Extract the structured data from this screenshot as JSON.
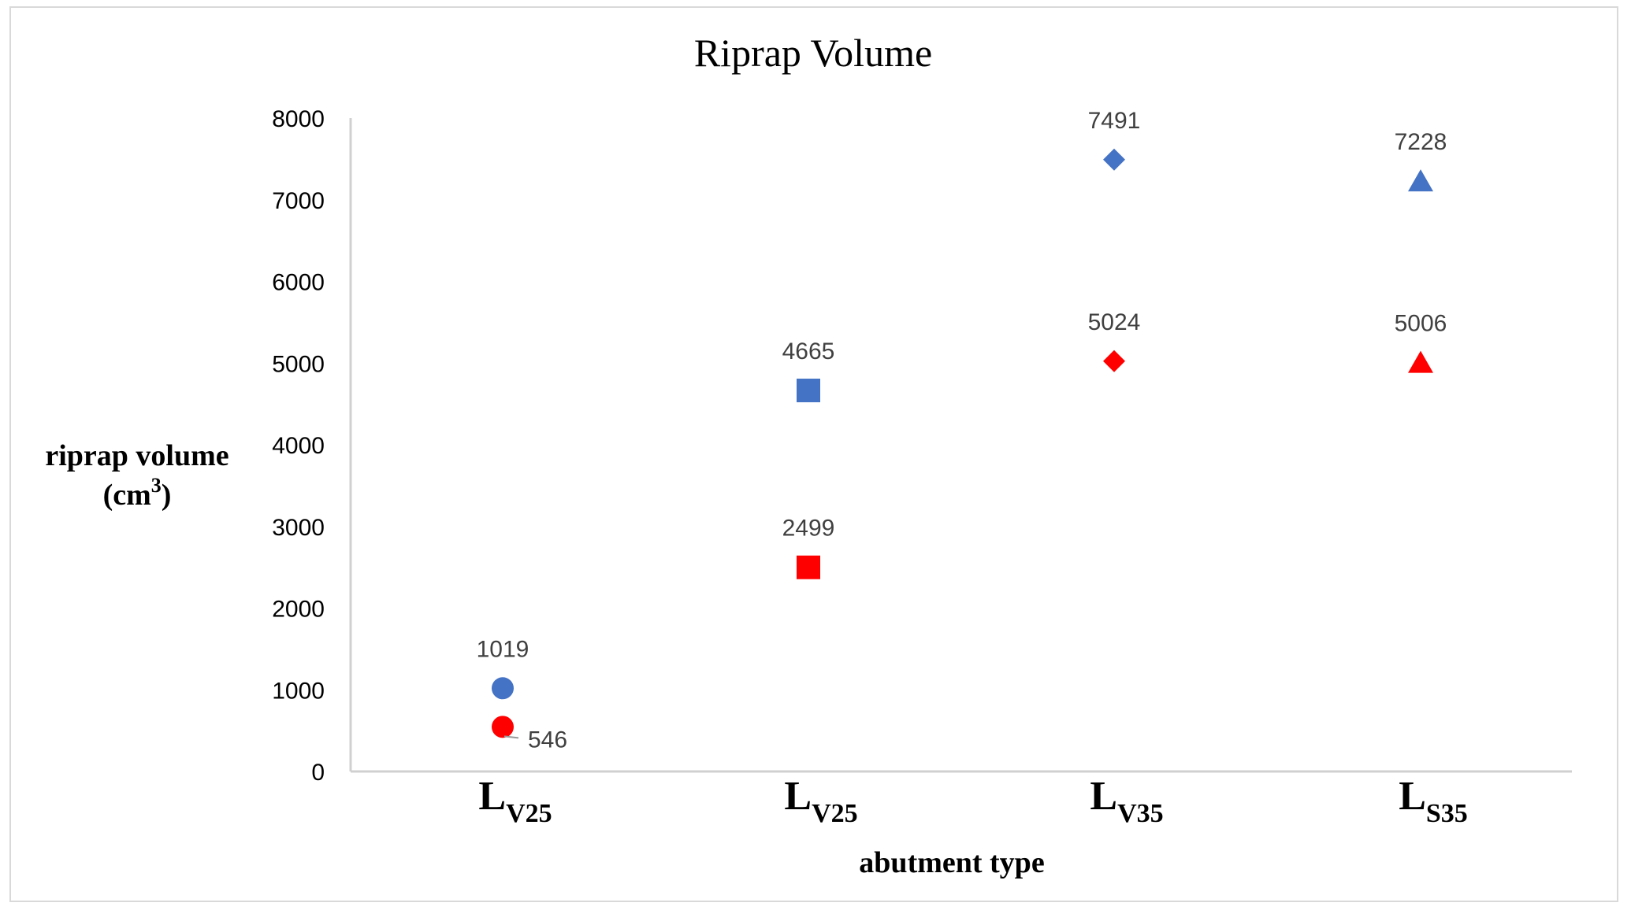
{
  "chart_data": {
    "type": "scatter",
    "title": "Riprap Volume",
    "xlabel": "abutment type",
    "ylabel_line1": "riprap volume",
    "ylabel_line2_base": "(cm",
    "ylabel_line2_sup": "3",
    "ylabel_line2_end": ")",
    "ylim": [
      0,
      8000
    ],
    "yticks": [
      "0",
      "1000",
      "2000",
      "3000",
      "4000",
      "5000",
      "6000",
      "7000",
      "8000"
    ],
    "categories": [
      {
        "main": "L",
        "sub": "V25"
      },
      {
        "main": "L",
        "sub": "V25"
      },
      {
        "main": "L",
        "sub": "V35"
      },
      {
        "main": "L",
        "sub": "S35"
      }
    ],
    "series": [
      {
        "color": "#4472c4",
        "points": [
          {
            "category_index": 0,
            "value": 1019,
            "label": "1019",
            "marker": "circle"
          },
          {
            "category_index": 1,
            "value": 4665,
            "label": "4665",
            "marker": "square"
          },
          {
            "category_index": 2,
            "value": 7491,
            "label": "7491",
            "marker": "diamond"
          },
          {
            "category_index": 3,
            "value": 7228,
            "label": "7228",
            "marker": "triangle"
          }
        ]
      },
      {
        "color": "#ff0000",
        "points": [
          {
            "category_index": 0,
            "value": 546,
            "label": "546",
            "marker": "circle"
          },
          {
            "category_index": 1,
            "value": 2499,
            "label": "2499",
            "marker": "square"
          },
          {
            "category_index": 2,
            "value": 5024,
            "label": "5024",
            "marker": "diamond"
          },
          {
            "category_index": 3,
            "value": 5006,
            "label": "5006",
            "marker": "triangle"
          }
        ]
      }
    ],
    "grid": false,
    "legend": "none"
  }
}
